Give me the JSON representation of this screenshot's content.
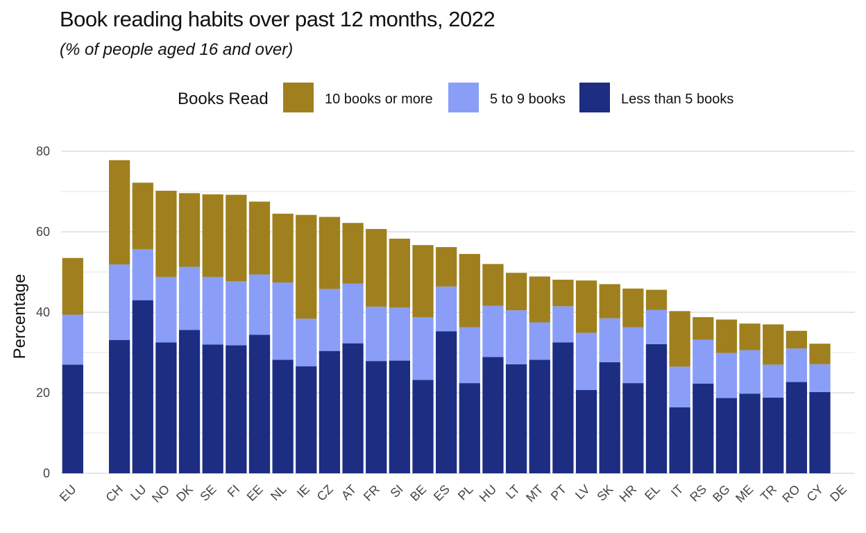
{
  "title": "Book reading habits over past 12 months, 2022",
  "subtitle": "(% of people aged 16 and over)",
  "colors": {
    "ten_plus": "#A0801E",
    "five_to_nine": "#8A9EF8",
    "less_than_five": "#1C2D82",
    "grid": "#e6e6e6"
  },
  "chart_data": {
    "type": "bar",
    "stacked": true,
    "legend_title": "Books Read",
    "legend_position": "top",
    "ylabel": "Percentage",
    "xlabel": "",
    "ylim": [
      0,
      80
    ],
    "yticks": [
      0,
      20,
      40,
      60,
      80
    ],
    "grid": true,
    "categories": [
      "EU",
      "",
      "CH",
      "LU",
      "NO",
      "DK",
      "SE",
      "FI",
      "EE",
      "NL",
      "IE",
      "CZ",
      "AT",
      "FR",
      "SI",
      "BE",
      "ES",
      "PL",
      "HU",
      "LT",
      "MT",
      "PT",
      "LV",
      "SK",
      "HR",
      "EL",
      "IT",
      "RS",
      "BG",
      "ME",
      "TR",
      "RO",
      "CY",
      "DE"
    ],
    "series": [
      {
        "name": "Less than 5 books",
        "color_key": "less_than_five",
        "values": [
          27.0,
          null,
          33.1,
          43.0,
          32.5,
          35.6,
          32.0,
          31.8,
          34.4,
          28.2,
          26.6,
          30.4,
          32.3,
          27.9,
          28.0,
          23.2,
          35.3,
          22.4,
          28.9,
          27.1,
          28.2,
          32.5,
          20.7,
          27.6,
          22.4,
          32.1,
          16.4,
          22.3,
          18.7,
          19.8,
          18.8,
          22.7,
          20.2,
          null
        ]
      },
      {
        "name": "5 to 9 books",
        "color_key": "five_to_nine",
        "values": [
          12.4,
          null,
          18.8,
          12.7,
          16.3,
          15.7,
          16.8,
          15.9,
          15.0,
          19.2,
          11.8,
          15.4,
          14.8,
          13.5,
          13.2,
          15.6,
          11.1,
          13.9,
          12.7,
          13.4,
          9.3,
          9.0,
          14.2,
          10.9,
          13.9,
          8.5,
          10.1,
          10.9,
          11.2,
          10.8,
          8.2,
          8.3,
          6.9,
          null
        ]
      },
      {
        "name": "10 books or more",
        "color_key": "ten_plus",
        "values": [
          14.1,
          null,
          25.9,
          16.5,
          21.4,
          18.3,
          20.5,
          21.5,
          18.1,
          17.1,
          25.8,
          17.9,
          15.1,
          19.3,
          17.1,
          17.9,
          9.8,
          18.2,
          10.4,
          9.3,
          11.4,
          6.6,
          13.0,
          8.5,
          9.6,
          5.0,
          13.8,
          5.6,
          8.3,
          6.6,
          10.0,
          4.4,
          5.1,
          null
        ]
      }
    ]
  }
}
